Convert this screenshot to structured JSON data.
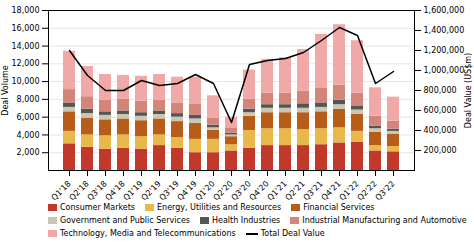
{
  "chart_data": {
    "type": "bar",
    "stacked": true,
    "categories": [
      "Q1'18",
      "Q2'18",
      "Q3'18",
      "Q4'18",
      "Q1'19",
      "Q2'19",
      "Q3'19",
      "Q4'19",
      "Q1'20",
      "Q2'20",
      "Q3'20",
      "Q4'20",
      "Q1'21",
      "Q2'21",
      "Q3'21",
      "Q4'21",
      "Q1'22",
      "Q2'22",
      "Q3'22"
    ],
    "series": [
      {
        "name": "Consumer Markets",
        "color": "#c0392b",
        "values": [
          3000,
          2600,
          2400,
          2500,
          2400,
          2800,
          2500,
          2000,
          2000,
          2200,
          2500,
          2800,
          2800,
          2800,
          2900,
          3100,
          3200,
          2200,
          2100
        ]
      },
      {
        "name": "Energy, Utilities and Resources",
        "color": "#e8b84b",
        "values": [
          1400,
          1400,
          1500,
          1500,
          1400,
          1200,
          1200,
          1500,
          1500,
          700,
          2000,
          1900,
          1900,
          1800,
          1800,
          1700,
          1200,
          600,
          600
        ]
      },
      {
        "name": "Financial Services",
        "color": "#b85c1a",
        "values": [
          2200,
          1900,
          1800,
          1800,
          1800,
          1800,
          1800,
          1800,
          1000,
          900,
          1600,
          1800,
          1800,
          1900,
          1900,
          2100,
          1900,
          1500,
          1400
        ]
      },
      {
        "name": "Government and Public Services",
        "color": "#c8c8b4",
        "values": [
          500,
          500,
          500,
          500,
          500,
          500,
          500,
          500,
          300,
          200,
          400,
          500,
          500,
          500,
          500,
          500,
          500,
          400,
          300
        ]
      },
      {
        "name": "Health Industries",
        "color": "#555555",
        "values": [
          500,
          500,
          400,
          400,
          400,
          400,
          400,
          400,
          300,
          200,
          400,
          400,
          400,
          500,
          500,
          500,
          400,
          300,
          250
        ]
      },
      {
        "name": "Industrial Manufacturing and Automotive",
        "color": "#d4857a",
        "values": [
          1500,
          1400,
          1300,
          1300,
          1300,
          1200,
          1200,
          1300,
          800,
          600,
          1100,
          1300,
          1300,
          1400,
          1700,
          1700,
          1500,
          1100,
          900
        ]
      },
      {
        "name": "Technology, Media and Telecommunications",
        "color": "#f0a8a8",
        "values": [
          4300,
          3400,
          2900,
          2700,
          2800,
          2900,
          2900,
          3000,
          2500,
          1200,
          3300,
          3800,
          4000,
          4700,
          6000,
          6800,
          5900,
          3200,
          2700
        ]
      },
      {
        "name": "Total Deal Value",
        "type": "line",
        "axis": "y2",
        "color": "black",
        "values": [
          1200000,
          950000,
          800000,
          800000,
          900000,
          850000,
          870000,
          960000,
          870000,
          480000,
          1060000,
          1100000,
          1120000,
          1180000,
          1300000,
          1430000,
          1350000,
          870000,
          990000
        ]
      }
    ],
    "ylabel": "Deal Volume",
    "y2label": "Deal Value (US$m)",
    "ylim": [
      0,
      18000
    ],
    "yticks": [
      {
        "value": 2000,
        "label": "2,000"
      },
      {
        "value": 4000,
        "label": "4,000"
      },
      {
        "value": 6000,
        "label": "6,000"
      },
      {
        "value": 8000,
        "label": "8,000"
      },
      {
        "value": 10000,
        "label": "10,000"
      },
      {
        "value": 12000,
        "label": "12,000"
      },
      {
        "value": 14000,
        "label": "14,000"
      },
      {
        "value": 16000,
        "label": "16,000"
      },
      {
        "value": 18000,
        "label": "18,000"
      }
    ],
    "y2lim": [
      0,
      1600000
    ],
    "y2ticks": [
      {
        "value": 200000,
        "label": "200,000"
      },
      {
        "value": 400000,
        "label": "400,000"
      },
      {
        "value": 600000,
        "label": "600,000"
      },
      {
        "value": 800000,
        "label": "800,000"
      },
      {
        "value": 1000000,
        "label": "1,000,000"
      },
      {
        "value": 1200000,
        "label": "1,200,000"
      },
      {
        "value": 1400000,
        "label": "1,400,000"
      },
      {
        "value": 1600000,
        "label": "1,600,000"
      }
    ],
    "grid": true,
    "legend": "bottom"
  }
}
